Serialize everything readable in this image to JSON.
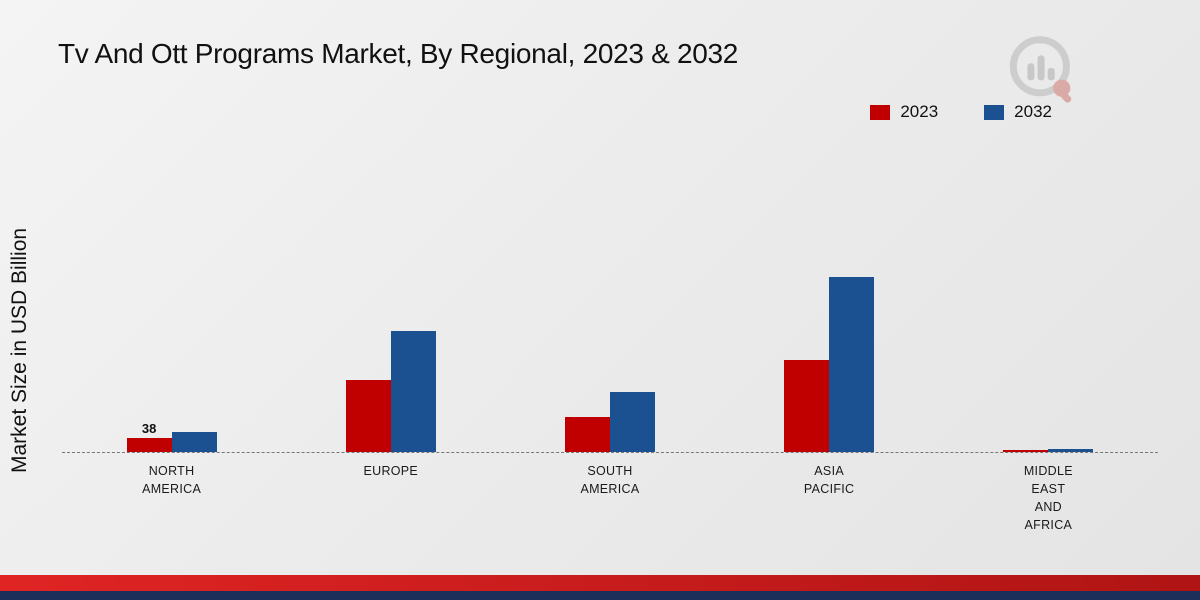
{
  "title": "Tv And Ott Programs Market, By Regional, 2023 & 2032",
  "y_axis_label": "Market Size in USD Billion",
  "legend": [
    {
      "label": "2023",
      "color": "#c00000"
    },
    {
      "label": "2032",
      "color": "#1b5190"
    }
  ],
  "colors": {
    "accent_red": "#c00000",
    "accent_blue": "#1b5190",
    "footer_red": "#e02424",
    "footer_navy": "#1c2e5a"
  },
  "logo": {
    "name": "brand-watermark-logo"
  },
  "chart_data": {
    "type": "bar",
    "title": "Tv And Ott Programs Market, By Regional, 2023 & 2032",
    "xlabel": "",
    "ylabel": "Market Size in USD Billion",
    "ylim": [
      0,
      500
    ],
    "grid": false,
    "legend_position": "top-right",
    "baseline_style": "dashed",
    "categories": [
      [
        "NORTH",
        "AMERICA"
      ],
      [
        "EUROPE"
      ],
      [
        "SOUTH",
        "AMERICA"
      ],
      [
        "ASIA",
        "PACIFIC"
      ],
      [
        "MIDDLE",
        "EAST",
        "AND",
        "AFRICA"
      ]
    ],
    "series": [
      {
        "name": "2023",
        "color": "#c00000",
        "values": [
          38,
          195,
          95,
          250,
          5
        ],
        "data_labels": [
          "38",
          null,
          null,
          null,
          null
        ]
      },
      {
        "name": "2032",
        "color": "#1b5190",
        "values": [
          54,
          326,
          163,
          472,
          8
        ],
        "data_labels": [
          null,
          null,
          null,
          null,
          null
        ]
      }
    ]
  }
}
